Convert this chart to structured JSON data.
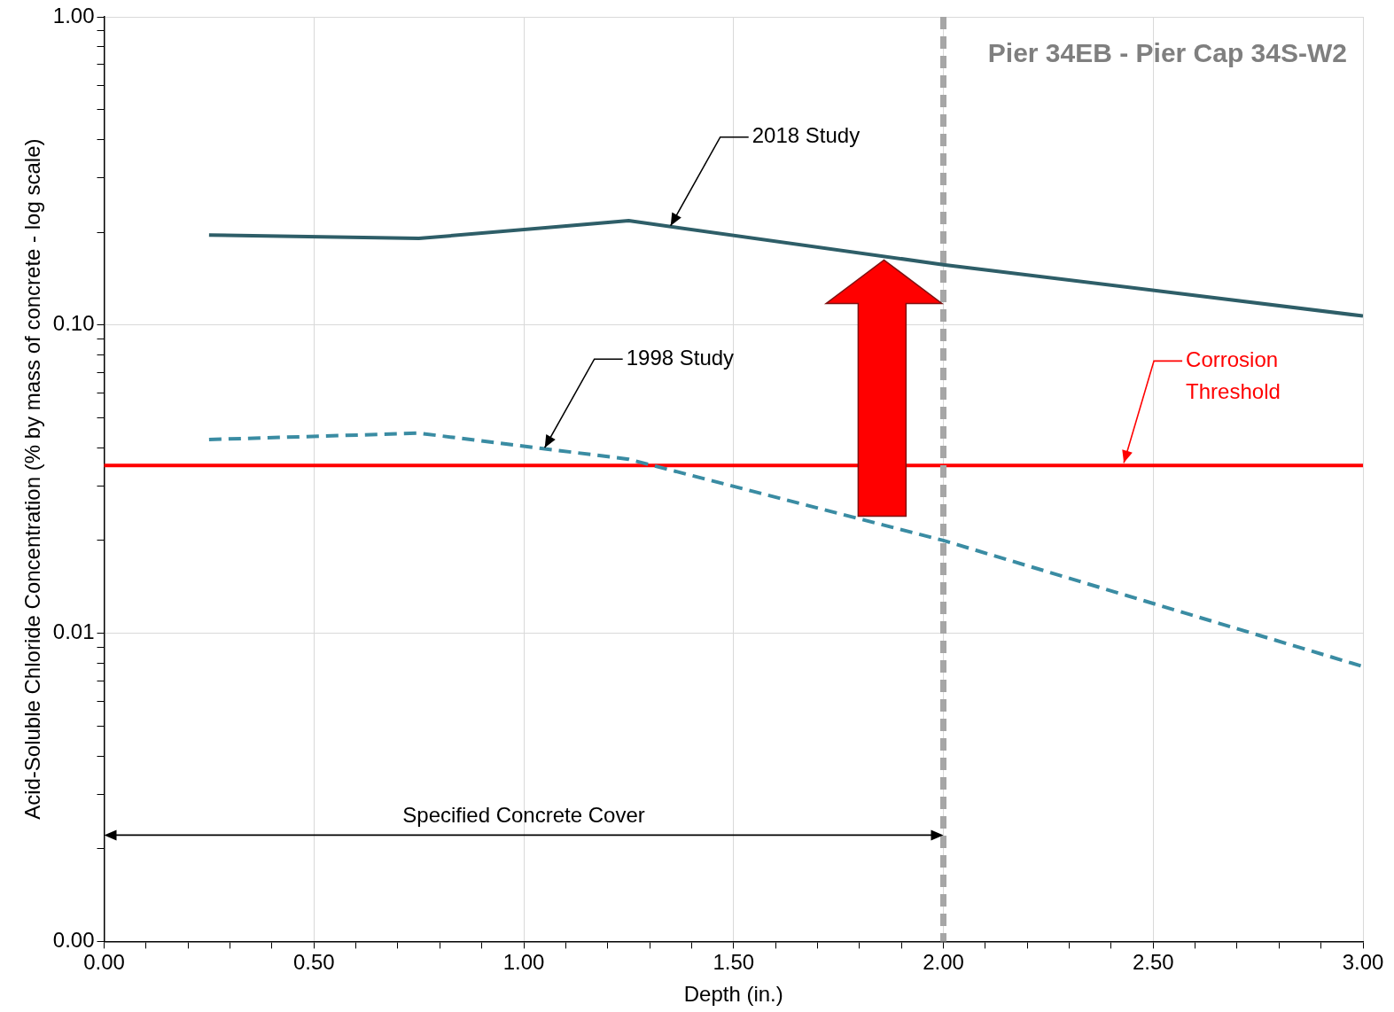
{
  "chart_data": {
    "type": "line",
    "title": "Pier 34EB - Pier Cap 34S-W2",
    "xlabel": "Depth (in.)",
    "ylabel": "Acid-Soluble Chloride Concentration (% by mass of concrete - log scale)",
    "xlim": [
      0,
      3
    ],
    "xticks": [
      {
        "value": 0,
        "label": "0.00"
      },
      {
        "value": 0.1,
        "label": null
      },
      {
        "value": 0.2,
        "label": null
      },
      {
        "value": 0.3,
        "label": null
      },
      {
        "value": 0.4,
        "label": null
      },
      {
        "value": 0.5,
        "label": "0.50"
      },
      {
        "value": 0.6,
        "label": null
      },
      {
        "value": 0.7,
        "label": null
      },
      {
        "value": 0.8,
        "label": null
      },
      {
        "value": 0.9,
        "label": null
      },
      {
        "value": 1,
        "label": "1.00"
      },
      {
        "value": 1.1,
        "label": null
      },
      {
        "value": 1.2,
        "label": null
      },
      {
        "value": 1.3,
        "label": null
      },
      {
        "value": 1.4,
        "label": null
      },
      {
        "value": 1.5,
        "label": "1.50"
      },
      {
        "value": 1.6,
        "label": null
      },
      {
        "value": 1.7,
        "label": null
      },
      {
        "value": 1.8,
        "label": null
      },
      {
        "value": 1.9,
        "label": null
      },
      {
        "value": 2,
        "label": "2.00"
      },
      {
        "value": 2.1,
        "label": null
      },
      {
        "value": 2.2,
        "label": null
      },
      {
        "value": 2.3,
        "label": null
      },
      {
        "value": 2.4,
        "label": null
      },
      {
        "value": 2.5,
        "label": "2.50"
      },
      {
        "value": 2.6,
        "label": null
      },
      {
        "value": 2.7,
        "label": null
      },
      {
        "value": 2.8,
        "label": null
      },
      {
        "value": 2.9,
        "label": null
      },
      {
        "value": 3,
        "label": "3.00"
      }
    ],
    "ylim": [
      0.001,
      1
    ],
    "yticks": [
      {
        "value": 0.001,
        "label": "0.00"
      },
      {
        "value": 0.002,
        "label": null
      },
      {
        "value": 0.003,
        "label": null
      },
      {
        "value": 0.004,
        "label": null
      },
      {
        "value": 0.005,
        "label": null
      },
      {
        "value": 0.006,
        "label": null
      },
      {
        "value": 0.007,
        "label": null
      },
      {
        "value": 0.008,
        "label": null
      },
      {
        "value": 0.009,
        "label": null
      },
      {
        "value": 0.01,
        "label": "0.01"
      },
      {
        "value": 0.02,
        "label": null
      },
      {
        "value": 0.03,
        "label": null
      },
      {
        "value": 0.04,
        "label": null
      },
      {
        "value": 0.05,
        "label": null
      },
      {
        "value": 0.06,
        "label": null
      },
      {
        "value": 0.07,
        "label": null
      },
      {
        "value": 0.08,
        "label": null
      },
      {
        "value": 0.09,
        "label": null
      },
      {
        "value": 0.1,
        "label": "0.10"
      },
      {
        "value": 0.2,
        "label": null
      },
      {
        "value": 0.3,
        "label": null
      },
      {
        "value": 0.4,
        "label": null
      },
      {
        "value": 0.5,
        "label": null
      },
      {
        "value": 0.6,
        "label": null
      },
      {
        "value": 0.7,
        "label": null
      },
      {
        "value": 0.8,
        "label": null
      },
      {
        "value": 0.9,
        "label": null
      },
      {
        "value": 1,
        "label": "1.00"
      }
    ],
    "log": "y",
    "grid": true,
    "legend": false,
    "marker": "none",
    "x": [
      0.25,
      0.75,
      1.25,
      2,
      3
    ],
    "series": [
      {
        "color": "#2e5e68",
        "line_style": "solid",
        "values": [
          0.196,
          0.191,
          0.218,
          0.157,
          0.107
        ]
      },
      {
        "color": "#3a8ca3",
        "line_style": "dashed",
        "values": [
          0.0425,
          0.0446,
          0.0367,
          0.02,
          0.0078
        ]
      }
    ],
    "ref_lines": [
      {
        "axis": "y",
        "value": 0.035,
        "label": "Corrosion Threshold",
        "color": "#ff0000",
        "line_style": "solid"
      },
      {
        "axis": "x",
        "value": 2,
        "label": null,
        "color": "#a6a6a6",
        "line_style": "dashed"
      }
    ],
    "annotations": [
      {
        "text": "2018 Study",
        "x": 1.35,
        "y": 0.21
      },
      {
        "text": "1998 Study",
        "x": 1.05,
        "y": 0.04
      },
      "Specified Concrete Cover"
    ]
  }
}
